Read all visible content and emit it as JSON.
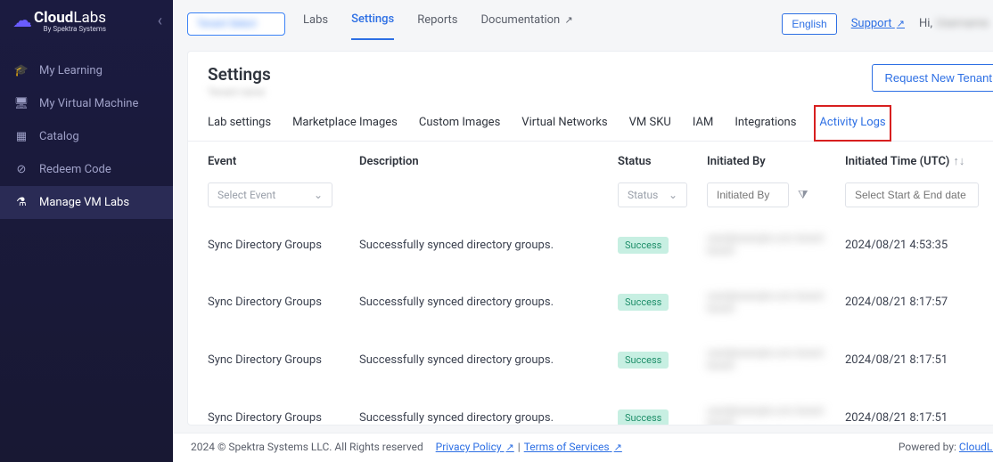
{
  "brand": {
    "name_bold": "Cloud",
    "name_light": "Labs",
    "byline": "By Spektra Systems"
  },
  "sidebar": {
    "items": [
      {
        "label": "My Learning",
        "icon": "🎓"
      },
      {
        "label": "My Virtual Machine",
        "icon": "🖥"
      },
      {
        "label": "Catalog",
        "icon": "▦"
      },
      {
        "label": "Redeem Code",
        "icon": "⊘"
      },
      {
        "label": "Manage VM Labs",
        "icon": "⚗"
      }
    ],
    "active_index": 4
  },
  "topnav": {
    "tenant_placeholder": "Tenant Select",
    "items": [
      {
        "label": "Labs"
      },
      {
        "label": "Settings"
      },
      {
        "label": "Reports"
      },
      {
        "label": "Documentation",
        "external": true
      }
    ],
    "active_index": 1,
    "language": "English",
    "support": "Support",
    "greeting_prefix": "Hi,",
    "greeting_name_blur": "Username"
  },
  "page": {
    "title": "Settings",
    "sub_blur": "Tenant name",
    "request_tenant": "Request New Tenant"
  },
  "subtabs": {
    "items": [
      "Lab settings",
      "Marketplace Images",
      "Custom Images",
      "Virtual Networks",
      "VM SKU",
      "IAM",
      "Integrations",
      "Activity Logs"
    ],
    "active_index": 7
  },
  "table": {
    "columns": {
      "event": "Event",
      "description": "Description",
      "status": "Status",
      "initiated_by": "Initiated By",
      "initiated_time": "Initiated Time (UTC)"
    },
    "filters": {
      "event_placeholder": "Select Event",
      "status_placeholder": "Status",
      "initiated_placeholder": "Initiated By",
      "date_placeholder": "Select Start & End date"
    },
    "rows": [
      {
        "event": "Sync Directory Groups",
        "description": "Successfully synced directory groups.",
        "status": "Success",
        "initiated_blur": "user@example.com tenant",
        "time": "2024/08/21 4:53:35"
      },
      {
        "event": "Sync Directory Groups",
        "description": "Successfully synced directory groups.",
        "status": "Success",
        "initiated_blur": "user@example.com tenant",
        "time": "2024/08/21 8:17:57"
      },
      {
        "event": "Sync Directory Groups",
        "description": "Successfully synced directory groups.",
        "status": "Success",
        "initiated_blur": "user@example.com tenant",
        "time": "2024/08/21 8:17:51"
      },
      {
        "event": "Sync Directory Groups",
        "description": "Successfully synced directory groups.",
        "status": "Success",
        "initiated_blur": "user@example.com tenant",
        "time": "2024/08/21 8:17:51"
      }
    ]
  },
  "footer": {
    "copyright": "2024 © Spektra Systems LLC. All Rights reserved",
    "privacy": "Privacy Policy",
    "terms": "Terms of Services",
    "powered_prefix": "Powered by:",
    "powered_link": "CloudLabs"
  }
}
